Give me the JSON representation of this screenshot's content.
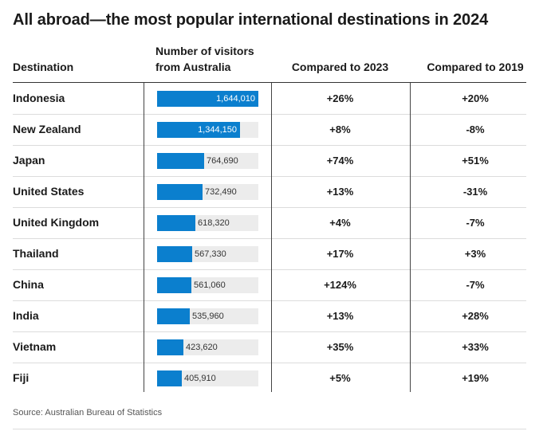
{
  "title": "All abroad—the most popular international destinations in 2024",
  "headers": {
    "destination": "Destination",
    "visitors_line1": "Number of visitors",
    "visitors_line2": "from Australia",
    "compared_2023": "Compared to 2023",
    "compared_2019": "Compared to 2019"
  },
  "source": "Source: Australian Bureau of Statistics",
  "colors": {
    "bar": "#0b7fce",
    "track": "#ececec"
  },
  "chart_data": {
    "type": "table",
    "title": "All abroad—the most popular international destinations in 2024",
    "columns": [
      "Destination",
      "Number of visitors from Australia",
      "Compared to 2023",
      "Compared to 2019"
    ],
    "max_value": 1644010,
    "rows": [
      {
        "destination": "Indonesia",
        "visitors": 1644010,
        "visitors_label": "1,644,010",
        "c2023": "+26%",
        "c2019": "+20%"
      },
      {
        "destination": "New Zealand",
        "visitors": 1344150,
        "visitors_label": "1,344,150",
        "c2023": "+8%",
        "c2019": "-8%"
      },
      {
        "destination": "Japan",
        "visitors": 764690,
        "visitors_label": "764,690",
        "c2023": "+74%",
        "c2019": "+51%"
      },
      {
        "destination": "United States",
        "visitors": 732490,
        "visitors_label": "732,490",
        "c2023": "+13%",
        "c2019": "-31%"
      },
      {
        "destination": "United Kingdom",
        "visitors": 618320,
        "visitors_label": "618,320",
        "c2023": "+4%",
        "c2019": "-7%"
      },
      {
        "destination": "Thailand",
        "visitors": 567330,
        "visitors_label": "567,330",
        "c2023": "+17%",
        "c2019": "+3%"
      },
      {
        "destination": "China",
        "visitors": 561060,
        "visitors_label": "561,060",
        "c2023": "+124%",
        "c2019": "-7%"
      },
      {
        "destination": "India",
        "visitors": 535960,
        "visitors_label": "535,960",
        "c2023": "+13%",
        "c2019": "+28%"
      },
      {
        "destination": "Vietnam",
        "visitors": 423620,
        "visitors_label": "423,620",
        "c2023": "+35%",
        "c2019": "+33%"
      },
      {
        "destination": "Fiji",
        "visitors": 405910,
        "visitors_label": "405,910",
        "c2023": "+5%",
        "c2019": "+19%"
      }
    ]
  }
}
